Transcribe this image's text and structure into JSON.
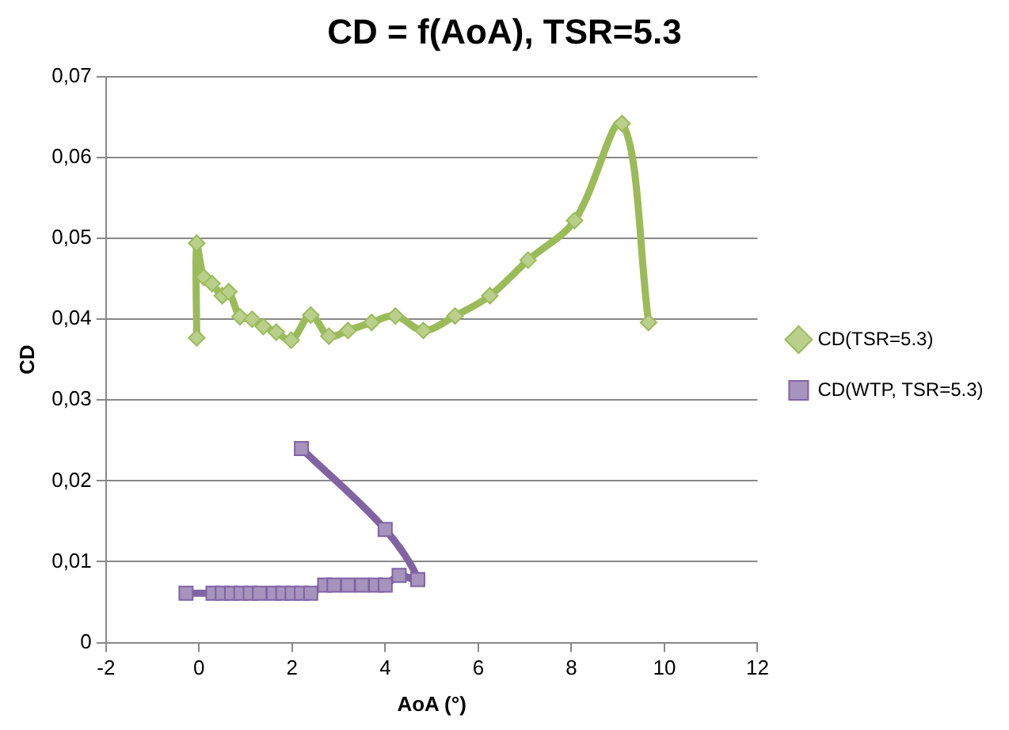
{
  "chart_data": {
    "type": "line",
    "title": "CD = f(AoA), TSR=5.3",
    "xlabel": "AoA (°)",
    "ylabel": "CD",
    "xlim": [
      -2,
      12
    ],
    "xticks": [
      -2,
      0,
      2,
      4,
      6,
      8,
      10,
      12
    ],
    "ylim": [
      0,
      0.07
    ],
    "yticks": [
      0,
      {
        "value": 0.01,
        "label": "0,01"
      },
      {
        "value": 0.02,
        "label": "0,02"
      },
      {
        "value": 0.03,
        "label": "0,03"
      },
      {
        "value": 0.04,
        "label": "0,04"
      },
      {
        "value": 0.05,
        "label": "0,05"
      },
      {
        "value": 0.06,
        "label": "0,06"
      },
      {
        "value": 0.07,
        "label": "0,07"
      }
    ],
    "grid": "y",
    "legend": "right",
    "line_style": "solid",
    "series": [
      {
        "name": "CD(TSR=5.3)",
        "color": "#9bbb59",
        "marker": "diamond",
        "x": [
          -0.05,
          -0.05,
          0.1,
          0.28,
          0.5,
          0.64,
          0.88,
          1.14,
          1.38,
          1.66,
          1.98,
          2.4,
          2.79,
          3.2,
          3.71,
          4.22,
          4.82,
          5.5,
          6.25,
          7.07,
          8.07,
          9.09,
          9.66
        ],
        "values": [
          0.0377,
          0.0494,
          0.0452,
          0.0444,
          0.0429,
          0.0434,
          0.0403,
          0.04,
          0.0391,
          0.0384,
          0.0374,
          0.0405,
          0.0379,
          0.0386,
          0.0396,
          0.0404,
          0.0386,
          0.0404,
          0.0429,
          0.0473,
          0.0522,
          0.0642,
          0.0396
        ]
      },
      {
        "name": "CD(WTP, TSR=5.3)",
        "color": "#8064a2",
        "marker": "square",
        "x": [
          -0.28,
          0.3,
          0.5,
          0.7,
          0.9,
          1.1,
          1.3,
          1.6,
          1.8,
          2.0,
          2.2,
          2.4,
          2.7,
          2.9,
          3.2,
          3.5,
          3.8,
          4.0,
          4.3,
          4.7,
          4.0,
          2.2
        ],
        "values": [
          0.0061,
          0.0061,
          0.0061,
          0.0061,
          0.0061,
          0.0061,
          0.0061,
          0.0061,
          0.0061,
          0.0061,
          0.0061,
          0.0061,
          0.0071,
          0.0071,
          0.0071,
          0.0071,
          0.0071,
          0.0071,
          0.0083,
          0.0078,
          0.014,
          0.024
        ]
      }
    ]
  }
}
